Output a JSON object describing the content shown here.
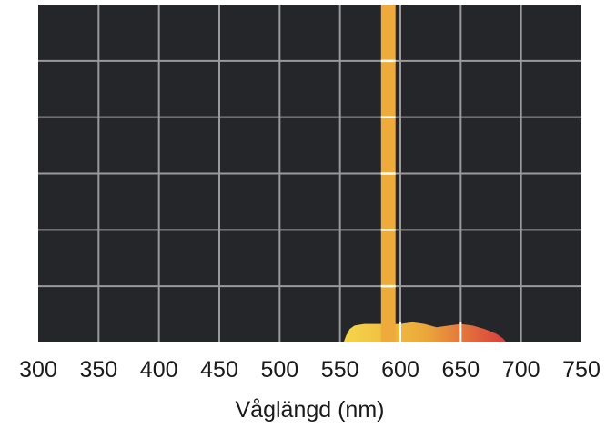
{
  "chart_data": {
    "type": "area",
    "title": "",
    "xlabel": "Våglängd (nm)",
    "ylabel": "",
    "xlim": [
      300,
      750
    ],
    "ylim": [
      0,
      1
    ],
    "x_ticks": [
      300,
      350,
      400,
      450,
      500,
      550,
      600,
      650,
      700,
      750
    ],
    "grid": true,
    "legend": "none",
    "colors": {
      "background": "#24262a",
      "grid": "#9a9a9a",
      "grid_highlight": "#ffffff",
      "emission_line": "#eeaa3a",
      "curve_start": "#f5d84a",
      "curve_mid": "#eba83a",
      "curve_end": "#d8383e"
    },
    "series": [
      {
        "kind": "emission-line",
        "x_range": [
          584,
          596
        ],
        "y": 1.0
      },
      {
        "kind": "continuum",
        "x": [
          553,
          555,
          558,
          562,
          570,
          580,
          590,
          600,
          610,
          620,
          630,
          640,
          650,
          660,
          670,
          680,
          685,
          688
        ],
        "y": [
          0.0,
          0.02,
          0.04,
          0.05,
          0.055,
          0.055,
          0.055,
          0.055,
          0.06,
          0.055,
          0.045,
          0.05,
          0.055,
          0.05,
          0.04,
          0.025,
          0.012,
          0.0
        ]
      }
    ]
  }
}
